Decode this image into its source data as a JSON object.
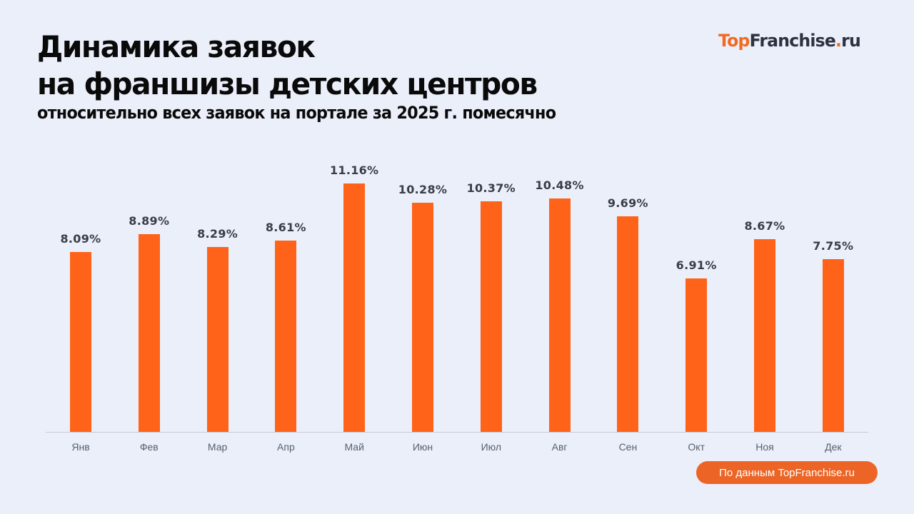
{
  "header": {
    "title_line1": "Динамика заявок",
    "title_line2": "на франшизы детских центров",
    "subtitle": "относительно всех заявок на портале за 2025 г. помесячно"
  },
  "logo": {
    "part1": "Top",
    "part2": "Franchise",
    "part3": ".",
    "part4": "ru"
  },
  "source_badge": "По данным TopFranchise.ru",
  "colors": {
    "bar": "#ff6319",
    "background": "#ebeff9",
    "badge": "#ec6526",
    "brand_orange": "#f26a22",
    "brand_dark": "#2d3140"
  },
  "chart_data": {
    "type": "bar",
    "title": "Динамика заявок на франшизы детских центров",
    "subtitle": "относительно всех заявок на портале за 2025 г. помесячно",
    "xlabel": "",
    "ylabel": "",
    "categories": [
      "Янв",
      "Фев",
      "Мар",
      "Апр",
      "Май",
      "Июн",
      "Июл",
      "Авг",
      "Сен",
      "Окт",
      "Ноя",
      "Дек"
    ],
    "values": [
      8.09,
      8.89,
      8.29,
      8.61,
      11.16,
      10.28,
      10.37,
      10.48,
      9.69,
      6.91,
      8.67,
      7.75
    ],
    "labels": [
      "8.09%",
      "8.89%",
      "8.29%",
      "8.61%",
      "11.16%",
      "10.28%",
      "10.37%",
      "10.48%",
      "9.69%",
      "6.91%",
      "8.67%",
      "7.75%"
    ],
    "unit": "%",
    "ylim": [
      0,
      11.16
    ],
    "grid": false,
    "legend": null
  }
}
